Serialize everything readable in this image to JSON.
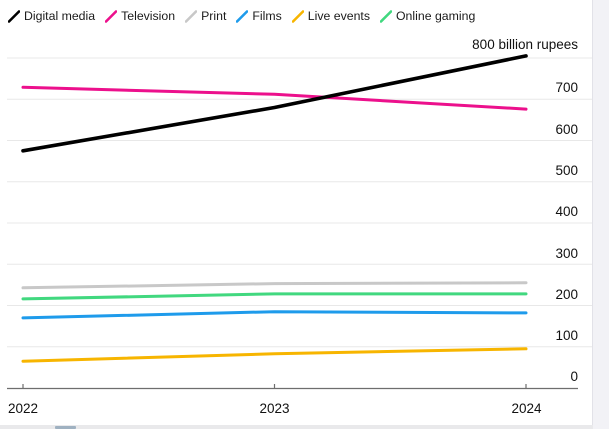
{
  "page": {
    "background": "#ffffff",
    "right_strip_color": "#f2f2f6",
    "bottom_strip_color": "#e9e9eb",
    "bottom_sliver_color": "#9fb1c1"
  },
  "chart_data": {
    "type": "line",
    "unit": "billion rupees",
    "legend_position": "top-left",
    "grid": "horizontal, every 100",
    "x_tick_labels": [
      "2022",
      "2023",
      "2024"
    ],
    "x": [
      2022,
      2023,
      2024
    ],
    "y_axis": {
      "top_label": "800 billion rupees",
      "tick_labels": [
        "700",
        "600",
        "500",
        "400",
        "300",
        "200",
        "100",
        "0"
      ],
      "ticks": [
        800,
        700,
        600,
        500,
        400,
        300,
        200,
        100,
        0
      ],
      "ylim": [
        0,
        800
      ]
    },
    "axis_colors": {
      "gridline": "#e8e8e8",
      "axis_line": "#6e6e6e",
      "label_text": "#111111"
    },
    "series": [
      {
        "name": "Digital media",
        "color": "#000000",
        "values": [
          575,
          680,
          805
        ]
      },
      {
        "name": "Television",
        "color": "#ec108c",
        "values": [
          729,
          712,
          676
        ]
      },
      {
        "name": "Print",
        "color": "#c8c8c8",
        "values": [
          243,
          253,
          255
        ]
      },
      {
        "name": "Films",
        "color": "#1e9beb",
        "values": [
          170,
          185,
          182
        ]
      },
      {
        "name": "Live events",
        "color": "#f7b500",
        "values": [
          65,
          83,
          95
        ]
      },
      {
        "name": "Online gaming",
        "color": "#41d87f",
        "values": [
          216,
          228,
          228
        ]
      }
    ]
  }
}
